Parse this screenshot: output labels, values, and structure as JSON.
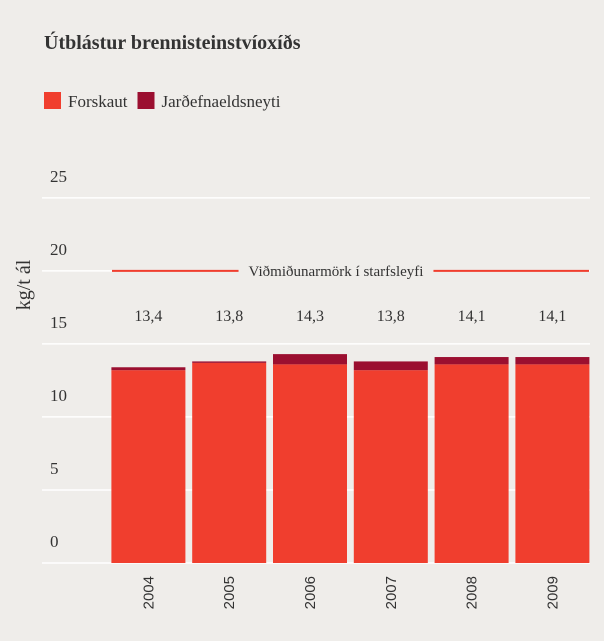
{
  "chart_data": {
    "type": "stacked_bar",
    "title": "Útblástur brennisteinstvíoxíðs",
    "y_label": "kg/t ál",
    "categories": [
      "2004",
      "2005",
      "2006",
      "2007",
      "2008",
      "2009"
    ],
    "series": [
      {
        "name": "Forskaut",
        "color": "#f03e2e",
        "values": [
          13.2,
          13.7,
          13.6,
          13.2,
          13.6,
          13.6
        ]
      },
      {
        "name": "Jarðefnaeldsneyti",
        "color": "#9b0f30",
        "values": [
          0.2,
          0.1,
          0.7,
          0.6,
          0.5,
          0.5
        ]
      }
    ],
    "totals": [
      13.4,
      13.8,
      14.3,
      13.8,
      14.1,
      14.1
    ],
    "total_labels": [
      "13,4",
      "13,8",
      "14,3",
      "13,8",
      "14,1",
      "14,1"
    ],
    "reference_line": {
      "value": 20,
      "label": "Viðmiðunarmörk í starfsleyfi",
      "color": "#f03e2e"
    },
    "ylim": [
      0,
      28
    ],
    "yticks": [
      0,
      5,
      10,
      15,
      20,
      25
    ],
    "grid": true,
    "legend": "top-left"
  }
}
